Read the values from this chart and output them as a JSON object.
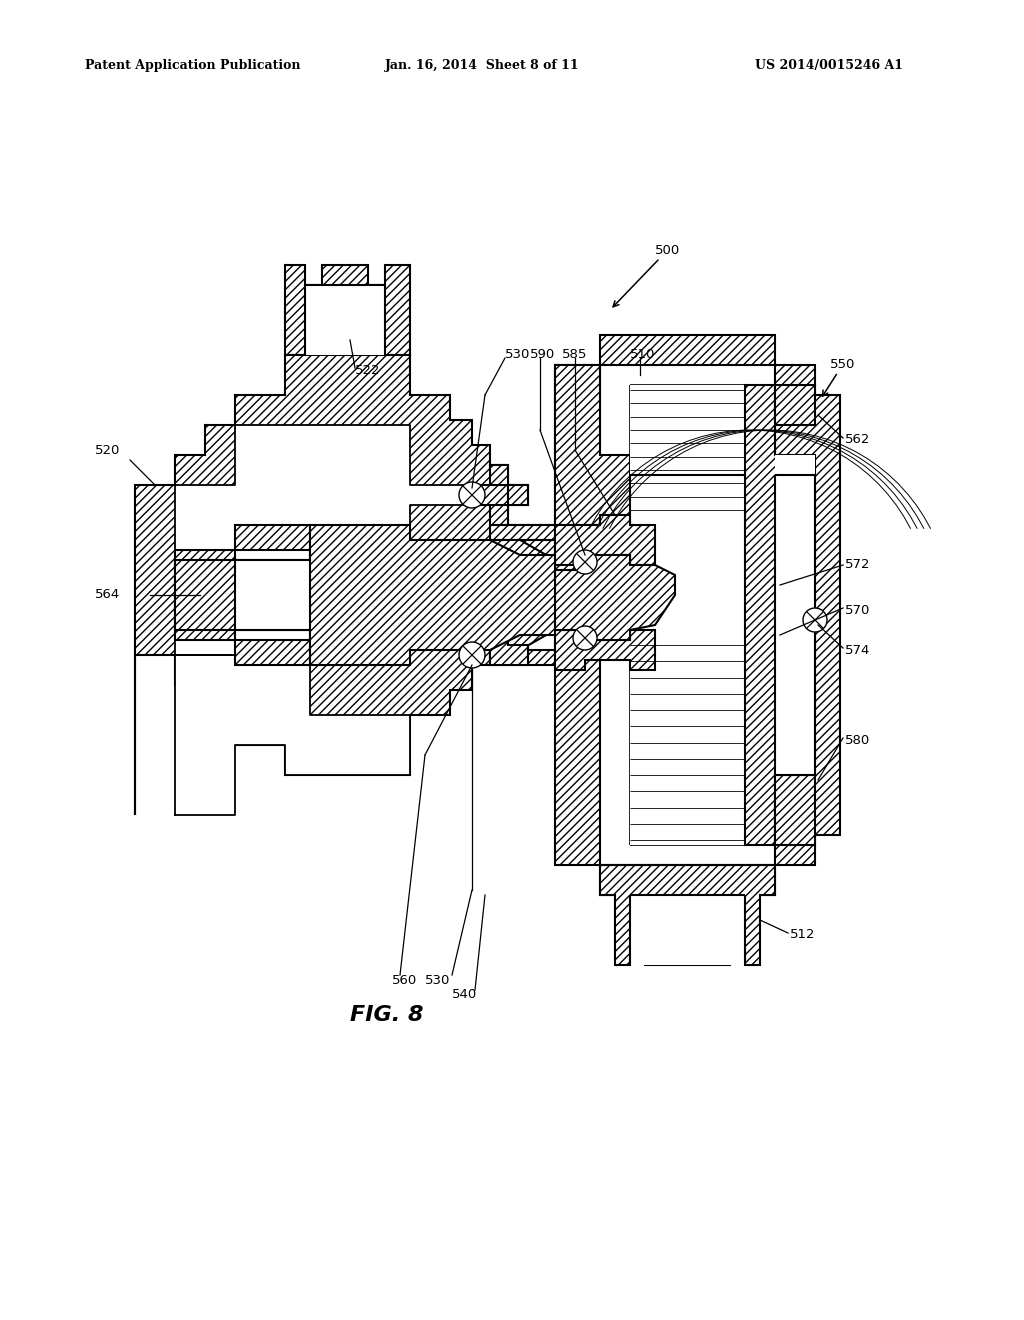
{
  "header_left": "Patent Application Publication",
  "header_mid": "Jan. 16, 2014  Sheet 8 of 11",
  "header_right": "US 2014/0015246 A1",
  "fig_label": "FIG. 8",
  "background": "#ffffff",
  "hatch": "////",
  "ec": "black",
  "lw": 1.5
}
